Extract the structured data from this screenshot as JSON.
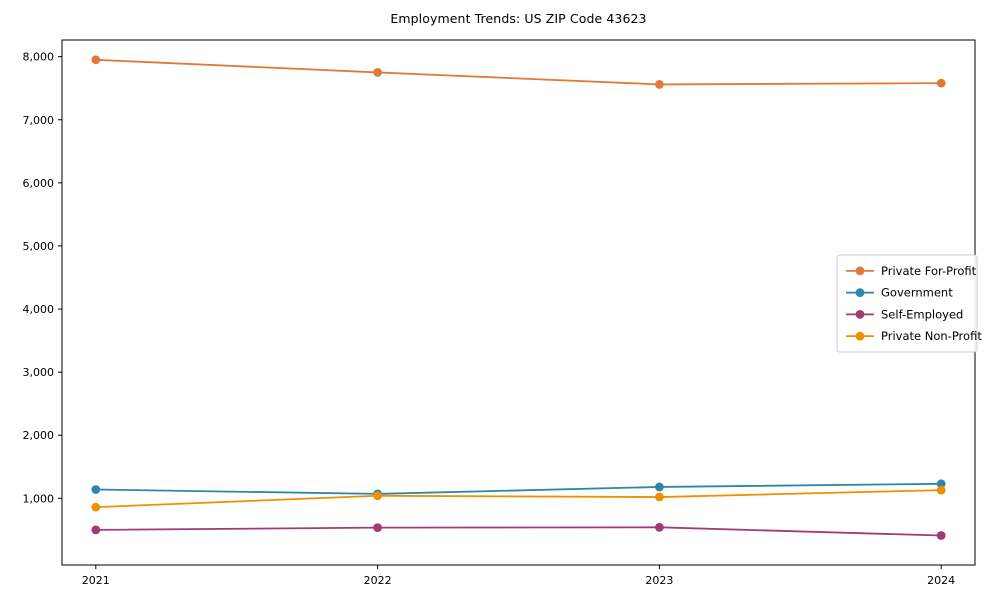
{
  "title": "Employment Trends: US ZIP Code 43623",
  "chart_data": {
    "type": "line",
    "title": "Employment Trends: US ZIP Code 43623",
    "x": [
      2021,
      2022,
      2023,
      2024
    ],
    "x_tick_labels": [
      "2021",
      "2022",
      "2023",
      "2024"
    ],
    "y_ticks": [
      1000,
      2000,
      3000,
      4000,
      5000,
      6000,
      7000,
      8000
    ],
    "y_tick_labels": [
      "1,000",
      "2,000",
      "3,000",
      "4,000",
      "5,000",
      "6,000",
      "7,000",
      "8,000"
    ],
    "xlim": [
      2020.88,
      2024.12
    ],
    "ylim": [
      -57,
      8264
    ],
    "xlabel": "",
    "ylabel": "",
    "grid": false,
    "legend_position": "center right",
    "axis_color": "#000000",
    "series": [
      {
        "name": "Private For-Profit",
        "color": "#E0793C",
        "values": [
          7950,
          7750,
          7560,
          7580
        ]
      },
      {
        "name": "Government",
        "color": "#2E86AB",
        "values": [
          1140,
          1070,
          1180,
          1230
        ]
      },
      {
        "name": "Self-Employed",
        "color": "#A23B72",
        "values": [
          500,
          535,
          540,
          410
        ]
      },
      {
        "name": "Private Non-Profit",
        "color": "#F18F01",
        "values": [
          860,
          1040,
          1020,
          1130
        ]
      }
    ]
  }
}
